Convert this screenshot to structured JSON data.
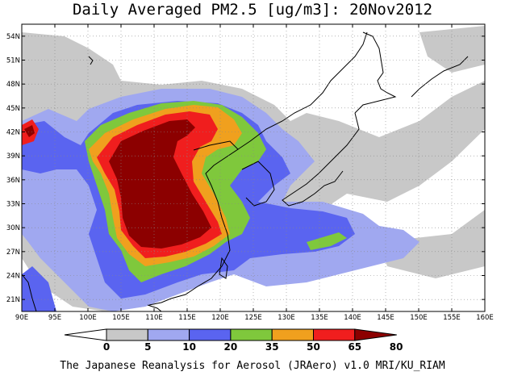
{
  "title": "Daily Averaged PM2.5 [ug/m3]: 20Nov2012",
  "credit": "The Japanese Reanalysis for Aerosol (JRAero) v1.0 MRI/KU_RIAM",
  "map": {
    "lon_range": [
      90,
      160
    ],
    "lat_range": [
      19.5,
      55.5
    ],
    "x_ticks": [
      "90E",
      "95E",
      "100E",
      "105E",
      "110E",
      "115E",
      "120E",
      "125E",
      "130E",
      "135E",
      "140E",
      "145E",
      "150E",
      "155E",
      "160E"
    ],
    "y_ticks": [
      "21N",
      "24N",
      "27N",
      "30N",
      "33N",
      "36N",
      "39N",
      "42N",
      "45N",
      "48N",
      "51N",
      "54N"
    ],
    "grid": "dotted"
  },
  "colorbar": {
    "labels": [
      "0",
      "5",
      "10",
      "20",
      "35",
      "50",
      "65",
      "80"
    ],
    "colors": [
      "#ffffff",
      "#c8c8c8",
      "#a0a8f0",
      "#5a64f0",
      "#7fc83c",
      "#f0a01e",
      "#f01e1e",
      "#8c0000"
    ]
  }
}
